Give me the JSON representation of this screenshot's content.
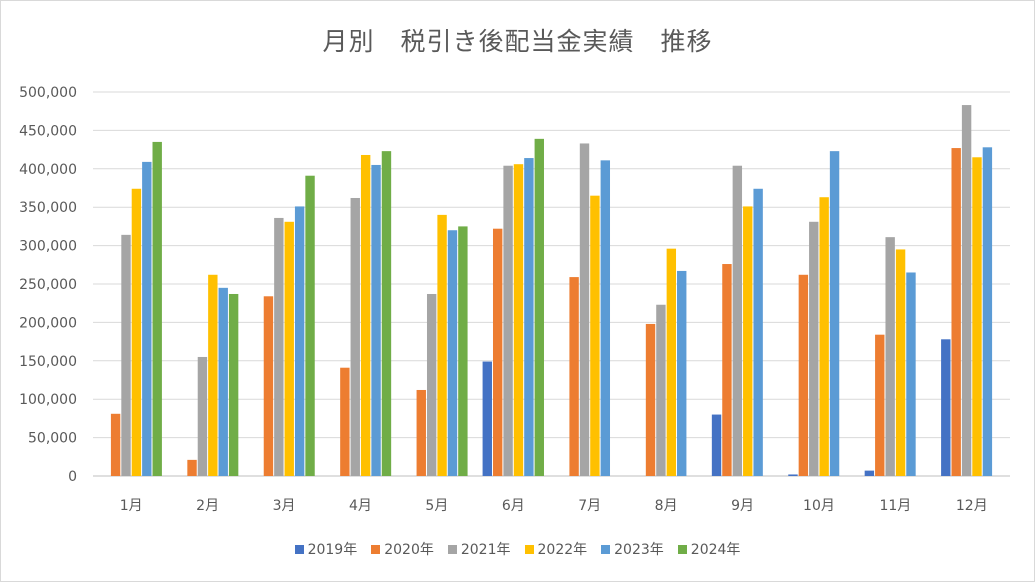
{
  "chart_data": {
    "type": "bar",
    "title": "月別　税引き後配当金実績　推移",
    "categories": [
      "1月",
      "2月",
      "3月",
      "4月",
      "5月",
      "6月",
      "7月",
      "8月",
      "9月",
      "10月",
      "11月",
      "12月"
    ],
    "y_ticks": [
      "0",
      "50,000",
      "100,000",
      "150,000",
      "200,000",
      "250,000",
      "300,000",
      "350,000",
      "400,000",
      "450,000",
      "500,000"
    ],
    "ylim": [
      0,
      500000
    ],
    "grid": true,
    "legend_position": "bottom",
    "series": [
      {
        "name": "2019年",
        "color": "#4472c4",
        "values": [
          null,
          null,
          null,
          null,
          null,
          149000,
          null,
          null,
          80000,
          2000,
          7000,
          178000
        ]
      },
      {
        "name": "2020年",
        "color": "#ed7d31",
        "values": [
          81000,
          21000,
          234000,
          141000,
          112000,
          322000,
          259000,
          198000,
          276000,
          262000,
          184000,
          427000
        ]
      },
      {
        "name": "2021年",
        "color": "#a5a5a5",
        "values": [
          314000,
          155000,
          336000,
          362000,
          237000,
          404000,
          433000,
          223000,
          404000,
          331000,
          311000,
          483000
        ]
      },
      {
        "name": "2022年",
        "color": "#ffc000",
        "values": [
          374000,
          262000,
          331000,
          418000,
          340000,
          406000,
          365000,
          296000,
          351000,
          363000,
          295000,
          415000
        ]
      },
      {
        "name": "2023年",
        "color": "#5b9bd5",
        "values": [
          409000,
          245000,
          351000,
          405000,
          320000,
          414000,
          411000,
          267000,
          374000,
          423000,
          265000,
          428000
        ]
      },
      {
        "name": "2024年",
        "color": "#70ad47",
        "values": [
          435000,
          237000,
          391000,
          423000,
          325000,
          439000,
          null,
          null,
          null,
          null,
          null,
          null
        ]
      }
    ]
  }
}
